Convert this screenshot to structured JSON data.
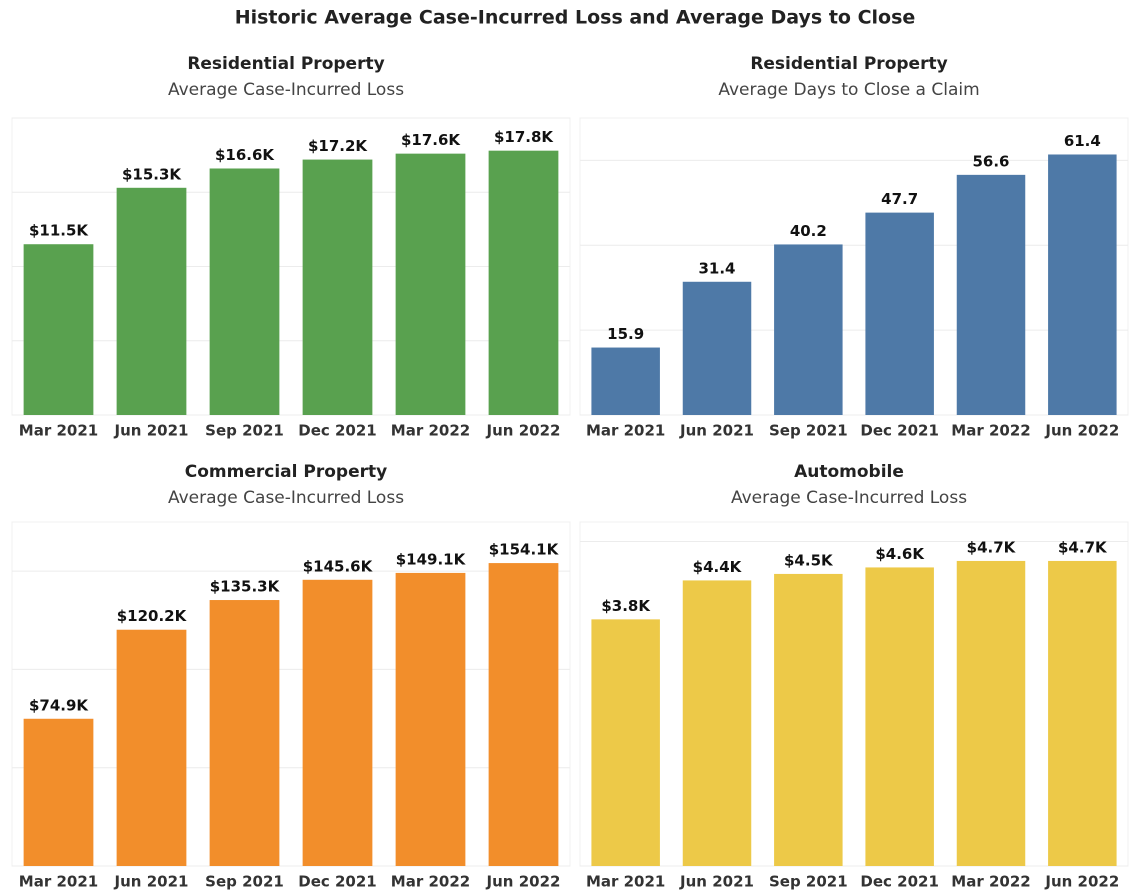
{
  "title": "Historic Average Case-Incurred Loss and Average Days to Close",
  "chart_data": [
    {
      "type": "bar",
      "title": "Residential Property",
      "subtitle": "Average Case-Incurred Loss",
      "categories": [
        "Mar 2021",
        "Jun 2021",
        "Sep 2021",
        "Dec 2021",
        "Mar 2022",
        "Jun 2022"
      ],
      "values": [
        11500,
        15300,
        16600,
        17200,
        17600,
        17800
      ],
      "value_labels": [
        "$11.5K",
        "$15.3K",
        "$16.6K",
        "$17.2K",
        "$17.6K",
        "$17.8K"
      ],
      "color": "#59a14f",
      "ylim": [
        0,
        20000
      ],
      "yticks": [
        0,
        5000,
        10000,
        15000,
        20000
      ],
      "grid": true
    },
    {
      "type": "bar",
      "title": "Residential Property",
      "subtitle": "Average Days to Close a Claim",
      "categories": [
        "Mar 2021",
        "Jun 2021",
        "Sep 2021",
        "Dec 2021",
        "Mar 2022",
        "Jun 2022"
      ],
      "values": [
        15.9,
        31.4,
        40.2,
        47.7,
        56.6,
        61.4
      ],
      "color": "#4e79a7",
      "ylim": [
        0,
        70
      ],
      "yticks": [
        0,
        20,
        40,
        60
      ],
      "grid": true
    },
    {
      "type": "bar",
      "title": "Commercial Property",
      "subtitle": "Average Case-Incurred Loss",
      "categories": [
        "Mar 2021",
        "Jun 2021",
        "Sep 2021",
        "Dec 2021",
        "Mar 2022",
        "Jun 2022"
      ],
      "values": [
        74900,
        120200,
        135300,
        145600,
        149100,
        154100
      ],
      "value_labels": [
        "$74.9K",
        "$120.2K",
        "$135.3K",
        "$145.6K",
        "$149.1K",
        "$154.1K"
      ],
      "color": "#f28e2b",
      "ylim": [
        0,
        175000
      ],
      "yticks": [
        0,
        50000,
        100000,
        150000
      ],
      "grid": true
    },
    {
      "type": "bar",
      "title": "Automobile",
      "subtitle": "Average Case-Incurred Loss",
      "categories": [
        "Mar 2021",
        "Jun 2021",
        "Sep 2021",
        "Dec 2021",
        "Mar 2022",
        "Jun 2022"
      ],
      "values": [
        3800,
        4400,
        4500,
        4600,
        4700,
        4700
      ],
      "value_labels": [
        "$3.8K",
        "$4.4K",
        "$4.5K",
        "$4.6K",
        "$4.7K",
        "$4.7K"
      ],
      "color": "#edc948",
      "ylim": [
        0,
        5300
      ],
      "yticks": [
        0,
        5000
      ],
      "grid": true
    }
  ]
}
